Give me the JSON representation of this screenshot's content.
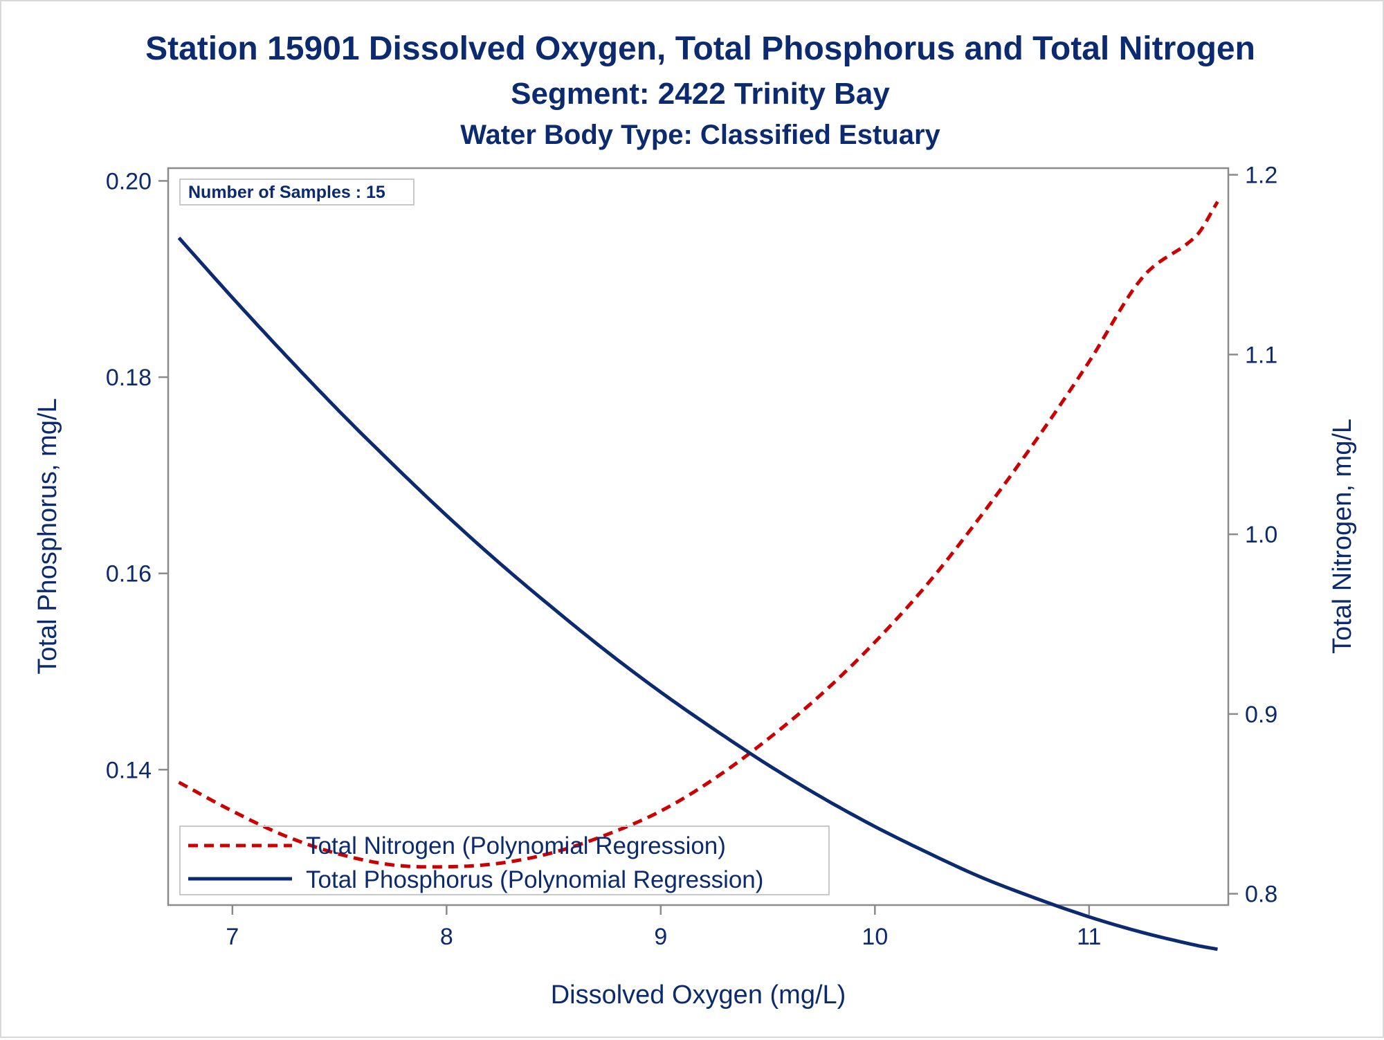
{
  "chart_data": {
    "type": "line",
    "title": "Station 15901  Dissolved Oxygen, Total Phosphorus and Total Nitrogen",
    "subtitle": "Segment: 2422  Trinity Bay",
    "subtitle2": "Water Body Type: Classified Estuary",
    "xlabel": "Dissolved Oxygen (mg/L)",
    "ylabel": "Total Phosphorus, mg/L",
    "y2label": "Total Nitrogen, mg/L",
    "xlim": [
      6.7,
      11.65
    ],
    "ylim": [
      0.1262,
      0.2013
    ],
    "y2lim": [
      0.7937,
      1.2037
    ],
    "xticks": [
      "7",
      "8",
      "9",
      "10",
      "11"
    ],
    "yticks": [
      "0.14",
      "0.16",
      "0.18",
      "0.20"
    ],
    "y2ticks": [
      "0.8",
      "0.9",
      "1.0",
      "1.1",
      "1.2"
    ],
    "inset_label": "Number of Samples : 15",
    "legend_position": "bottom-left inside",
    "grid": false,
    "series": [
      {
        "name": "Total Nitrogen (Polynomial Regression)",
        "axis": "y2",
        "color": "#cc0000",
        "style": "dashed",
        "x": [
          6.75,
          7.0,
          7.25,
          7.5,
          7.75,
          8.0,
          8.25,
          8.5,
          8.75,
          9.0,
          9.25,
          9.5,
          9.75,
          10.0,
          10.25,
          10.5,
          10.75,
          11.0,
          11.25,
          11.5,
          11.6
        ],
        "y": [
          0.862,
          0.846,
          0.832,
          0.822,
          0.816,
          0.815,
          0.817,
          0.823,
          0.833,
          0.846,
          0.864,
          0.886,
          0.911,
          0.94,
          0.973,
          1.011,
          1.052,
          1.096,
          1.143,
          1.166,
          1.185
        ]
      },
      {
        "name": "Total Phosphorus (Polynomial Regression)",
        "axis": "y",
        "color": "#0b2a6f",
        "style": "solid",
        "x": [
          6.75,
          7.0,
          7.25,
          7.5,
          7.75,
          8.0,
          8.25,
          8.5,
          8.75,
          9.0,
          9.25,
          9.5,
          9.75,
          10.0,
          10.25,
          10.5,
          10.75,
          11.0,
          11.25,
          11.5,
          11.6
        ],
        "y": [
          0.1942,
          0.1881,
          0.1822,
          0.1765,
          0.1711,
          0.1659,
          0.161,
          0.1564,
          0.152,
          0.1479,
          0.1441,
          0.1405,
          0.1372,
          0.1342,
          0.1315,
          0.129,
          0.1269,
          0.125,
          0.1234,
          0.1221,
          0.1217
        ]
      }
    ]
  }
}
